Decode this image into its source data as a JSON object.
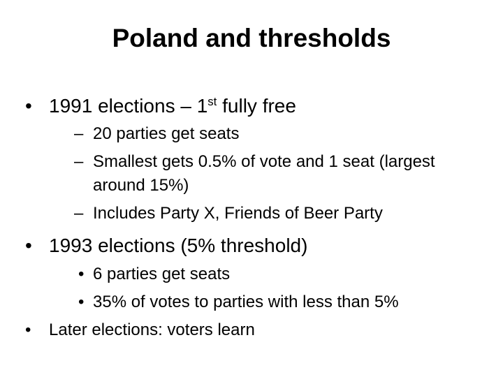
{
  "title": "Poland and thresholds",
  "items": [
    {
      "marker": "•",
      "text": "1991 elections – 1",
      "sup": "st",
      "text_after": " fully free"
    },
    {
      "marker": "–",
      "text": "20 parties get seats"
    },
    {
      "marker": "–",
      "lines": [
        "Smallest gets 0.5% of vote and 1 seat (largest",
        "around 15%)"
      ]
    },
    {
      "marker": "–",
      "text": "Includes Party X, Friends of Beer Party"
    },
    {
      "marker": "•",
      "text": "1993 elections (5% threshold)"
    },
    {
      "marker": "•",
      "text": "6 parties get seats"
    },
    {
      "marker": "•",
      "text": "35% of votes to parties with less than 5%"
    },
    {
      "marker": "•",
      "text": "Later elections: voters learn"
    }
  ]
}
